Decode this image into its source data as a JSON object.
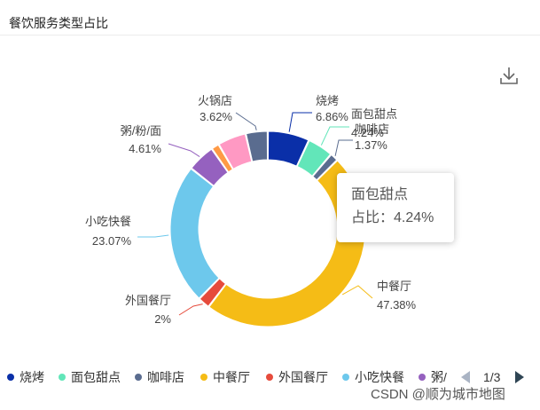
{
  "panel": {
    "title": "餐饮服务类型占比"
  },
  "toolbar": {
    "download_icon": "download-icon"
  },
  "chart_data": {
    "type": "pie",
    "donut": true,
    "slices": [
      {
        "name": "烧烤",
        "percent": 6.86,
        "color": "#0a2fa8"
      },
      {
        "name": "面包甜点",
        "percent": 4.24,
        "color": "#62e6b9"
      },
      {
        "name": "咖啡店",
        "percent": 1.37,
        "color": "#5a6c8f"
      },
      {
        "name": "中餐厅",
        "percent": 47.38,
        "color": "#f5bc16"
      },
      {
        "name": "外国餐厅",
        "percent": 2,
        "color": "#e64b3c"
      },
      {
        "name": "小吃快餐",
        "percent": 23.07,
        "color": "#6dc8ec"
      },
      {
        "name": "粥/粉/面",
        "percent": 4.61,
        "color": "#9561bf"
      },
      {
        "name": "",
        "percent": 1.31,
        "color": "#ff9a45"
      },
      {
        "name": "",
        "percent": 4.7,
        "color": "#ff99c3"
      },
      {
        "name": "火锅店",
        "percent": 3.62,
        "color": "#5a6c8f"
      }
    ],
    "labels": {
      "烧烤": {
        "name": "烧烤",
        "value": "6.86%"
      },
      "面包甜点": {
        "name": "面包甜点",
        "value": "4.24%"
      },
      "咖啡店": {
        "name": "咖啡店",
        "value": "1.37%"
      },
      "中餐厅": {
        "name": "中餐厅",
        "value": "47.38%"
      },
      "外国餐厅": {
        "name": "外国餐厅",
        "value": "2%"
      },
      "小吃快餐": {
        "name": "小吃快餐",
        "value": "23.07%"
      },
      "粥/粉/面": {
        "name": "粥/粉/面",
        "value": "4.61%"
      },
      "火锅店": {
        "name": "火锅店",
        "value": "3.62%"
      }
    },
    "legend_position": "bottom",
    "tooltip": {
      "name": "面包甜点",
      "label": "占比：4.24%"
    }
  },
  "legend": {
    "items": [
      {
        "label": "烧烤",
        "color": "#0a2fa8"
      },
      {
        "label": "面包甜点",
        "color": "#62e6b9"
      },
      {
        "label": "咖啡店",
        "color": "#5a6c8f"
      },
      {
        "label": "中餐厅",
        "color": "#f5bc16"
      },
      {
        "label": "外国餐厅",
        "color": "#e64b3c"
      },
      {
        "label": "小吃快餐",
        "color": "#6dc8ec"
      },
      {
        "label": "粥/",
        "color": "#9561bf"
      }
    ],
    "page": "1/3"
  },
  "watermark": "CSDN @顺为城市地图"
}
